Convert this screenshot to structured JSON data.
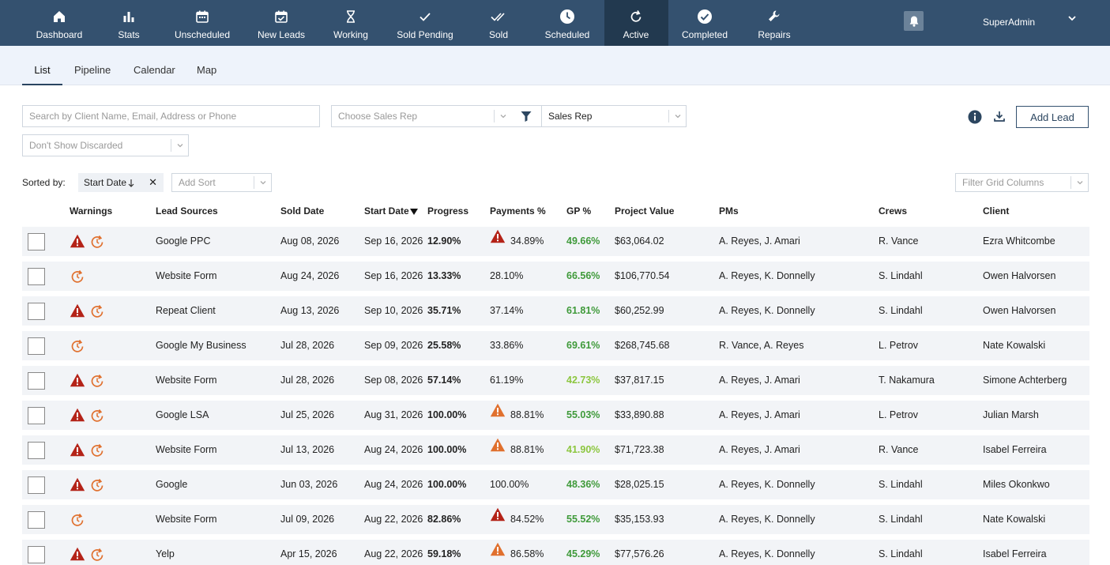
{
  "colors": {
    "nav_bg": "#34516f",
    "nav_active": "#22394f",
    "warn_red": "#b42318",
    "warn_orange": "#e0702e",
    "gp_green_dark": "#3f9a3a",
    "gp_green_light": "#8cc63f"
  },
  "nav": {
    "items": [
      {
        "label": "Dashboard",
        "icon": "home-icon"
      },
      {
        "label": "Stats",
        "icon": "bar-chart-icon"
      },
      {
        "label": "Unscheduled",
        "icon": "calendar-icon"
      },
      {
        "label": "New Leads",
        "icon": "calendar-check-icon"
      },
      {
        "label": "Working",
        "icon": "hourglass-icon"
      },
      {
        "label": "Sold Pending",
        "icon": "check-icon"
      },
      {
        "label": "Sold",
        "icon": "double-check-icon"
      },
      {
        "label": "Scheduled",
        "icon": "clock-icon"
      },
      {
        "label": "Active",
        "icon": "refresh-icon"
      },
      {
        "label": "Completed",
        "icon": "check-circle-icon"
      },
      {
        "label": "Repairs",
        "icon": "wrench-icon"
      }
    ],
    "active": "Active",
    "user": "SuperAdmin"
  },
  "tabs": [
    "List",
    "Pipeline",
    "Calendar",
    "Map"
  ],
  "active_tab": "List",
  "filters": {
    "search_placeholder": "Search by Client Name, Email, Address or Phone",
    "sales_rep_placeholder": "Choose Sales Rep",
    "sales_rep_field": "Sales Rep",
    "discarded": "Don't Show Discarded",
    "add_sort": "Add Sort",
    "filter_columns": "Filter Grid Columns",
    "add_lead": "Add Lead"
  },
  "sort": {
    "label": "Sorted by:",
    "chip": "Start Date"
  },
  "columns": [
    "Warnings",
    "Lead Sources",
    "Sold Date",
    "Start Date",
    "Progress",
    "Payments %",
    "GP %",
    "Project Value",
    "PMs",
    "Crews",
    "Client"
  ],
  "rows": [
    {
      "warn": "red",
      "source": "Google PPC",
      "sold": "Aug 08, 2026",
      "start": "Sep 16, 2026",
      "progress": "12.90%",
      "pay_warn": "red",
      "payments": "34.89%",
      "gp": "49.66%",
      "gp_color": "dark",
      "value": "$63,064.02",
      "pms": "A. Reyes, J. Amari",
      "crews": "R. Vance",
      "client": "Ezra Whitcombe"
    },
    {
      "warn": "",
      "source": "Website Form",
      "sold": "Aug 24, 2026",
      "start": "Sep 16, 2026",
      "progress": "13.33%",
      "pay_warn": "",
      "payments": "28.10%",
      "gp": "66.56%",
      "gp_color": "dark",
      "value": "$106,770.54",
      "pms": "A. Reyes, K. Donnelly",
      "crews": "S. Lindahl",
      "client": "Owen Halvorsen"
    },
    {
      "warn": "red",
      "source": "Repeat Client",
      "sold": "Aug 13, 2026",
      "start": "Sep 10, 2026",
      "progress": "35.71%",
      "pay_warn": "",
      "payments": "37.14%",
      "gp": "61.81%",
      "gp_color": "dark",
      "value": "$60,252.99",
      "pms": "A. Reyes, K. Donnelly",
      "crews": "S. Lindahl",
      "client": "Owen Halvorsen"
    },
    {
      "warn": "",
      "source": "Google My Business",
      "sold": "Jul 28, 2026",
      "start": "Sep 09, 2026",
      "progress": "25.58%",
      "pay_warn": "",
      "payments": "33.86%",
      "gp": "69.61%",
      "gp_color": "dark",
      "value": "$268,745.68",
      "pms": "R. Vance, A. Reyes",
      "crews": "L. Petrov",
      "client": "Nate Kowalski"
    },
    {
      "warn": "red",
      "source": "Website Form",
      "sold": "Jul 28, 2026",
      "start": "Sep 08, 2026",
      "progress": "57.14%",
      "pay_warn": "",
      "payments": "61.19%",
      "gp": "42.73%",
      "gp_color": "light",
      "value": "$37,817.15",
      "pms": "A. Reyes, J. Amari",
      "crews": "T. Nakamura",
      "client": "Simone Achterberg"
    },
    {
      "warn": "red",
      "source": "Google LSA",
      "sold": "Jul 25, 2026",
      "start": "Aug 31, 2026",
      "progress": "100.00%",
      "pay_warn": "orange",
      "payments": "88.81%",
      "gp": "55.03%",
      "gp_color": "dark",
      "value": "$33,890.88",
      "pms": "A. Reyes, J. Amari",
      "crews": "L. Petrov",
      "client": "Julian Marsh"
    },
    {
      "warn": "red",
      "source": "Website Form",
      "sold": "Jul 13, 2026",
      "start": "Aug 24, 2026",
      "progress": "100.00%",
      "pay_warn": "orange",
      "payments": "88.81%",
      "gp": "41.90%",
      "gp_color": "light",
      "value": "$71,723.38",
      "pms": "A. Reyes, J. Amari",
      "crews": "R. Vance",
      "client": "Isabel Ferreira"
    },
    {
      "warn": "red",
      "source": "Google",
      "sold": "Jun 03, 2026",
      "start": "Aug 24, 2026",
      "progress": "100.00%",
      "pay_warn": "",
      "payments": "100.00%",
      "gp": "48.36%",
      "gp_color": "dark",
      "value": "$28,025.15",
      "pms": "A. Reyes, K. Donnelly",
      "crews": "S. Lindahl",
      "client": "Miles Okonkwo"
    },
    {
      "warn": "",
      "source": "Website Form",
      "sold": "Jul 09, 2026",
      "start": "Aug 22, 2026",
      "progress": "82.86%",
      "pay_warn": "red",
      "payments": "84.52%",
      "gp": "55.52%",
      "gp_color": "dark",
      "value": "$35,153.93",
      "pms": "A. Reyes, K. Donnelly",
      "crews": "S. Lindahl",
      "client": "Nate Kowalski"
    },
    {
      "warn": "red",
      "source": "Yelp",
      "sold": "Apr 15, 2026",
      "start": "Aug 22, 2026",
      "progress": "59.18%",
      "pay_warn": "orange",
      "payments": "86.58%",
      "gp": "45.29%",
      "gp_color": "dark",
      "value": "$77,576.26",
      "pms": "A. Reyes, K. Donnelly",
      "crews": "S. Lindahl",
      "client": "Isabel Ferreira"
    }
  ]
}
